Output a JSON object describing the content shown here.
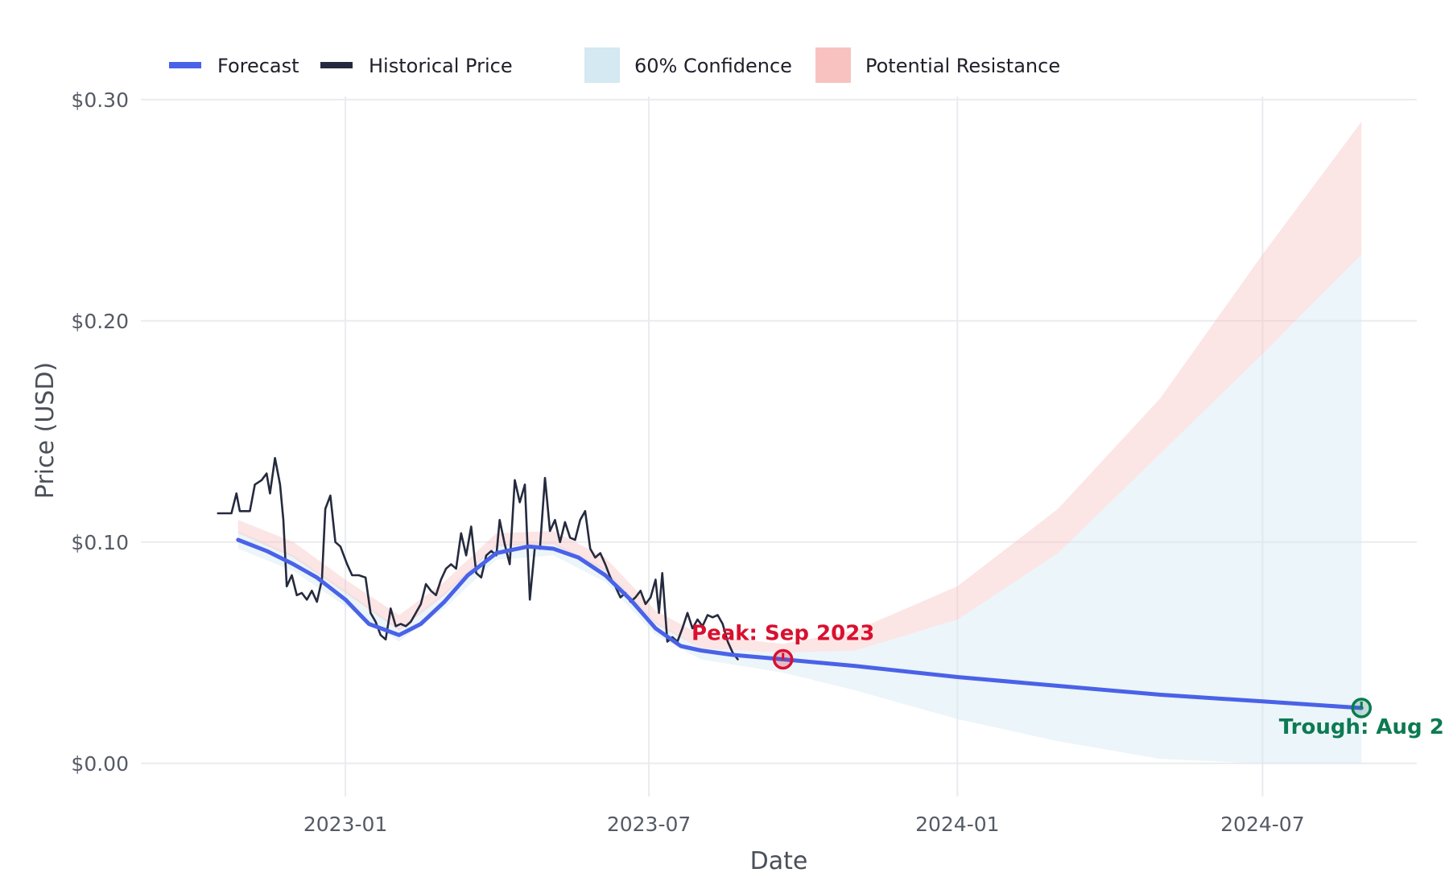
{
  "chart_data": {
    "type": "line",
    "xlabel": "Date",
    "ylabel": "Price (USD)",
    "x_range": [
      "2022-09-01",
      "2024-10-01"
    ],
    "ylim": [
      -0.015,
      0.305
    ],
    "y_ticks": [
      0.0,
      0.1,
      0.2,
      0.3
    ],
    "y_tick_labels": [
      "$0.00",
      "$0.10",
      "$0.20",
      "$0.30"
    ],
    "x_ticks": [
      "2023-01-01",
      "2023-07-01",
      "2024-01-01",
      "2024-07-01"
    ],
    "x_tick_labels": [
      "2023-01",
      "2023-07",
      "2024-01",
      "2024-07"
    ],
    "grid": true,
    "legend_position": "top-left",
    "legend": [
      {
        "label": "Forecast",
        "kind": "line",
        "color": "#4a62e8"
      },
      {
        "label": "Historical Price",
        "kind": "line",
        "color": "#252a3e"
      },
      {
        "label": "60% Confidence",
        "kind": "area",
        "color": "#d4e9f1"
      },
      {
        "label": "Potential Resistance",
        "kind": "area",
        "color": "#f8c2c0"
      }
    ],
    "series": [
      {
        "name": "Historical Price",
        "color": "#252a3e",
        "points": [
          [
            "2022-10-17",
            0.113
          ],
          [
            "2022-10-25",
            0.113
          ],
          [
            "2022-10-28",
            0.122
          ],
          [
            "2022-10-30",
            0.114
          ],
          [
            "2022-11-05",
            0.114
          ],
          [
            "2022-11-08",
            0.126
          ],
          [
            "2022-11-12",
            0.128
          ],
          [
            "2022-11-15",
            0.131
          ],
          [
            "2022-11-17",
            0.122
          ],
          [
            "2022-11-20",
            0.138
          ],
          [
            "2022-11-23",
            0.126
          ],
          [
            "2022-11-25",
            0.11
          ],
          [
            "2022-11-27",
            0.08
          ],
          [
            "2022-11-30",
            0.085
          ],
          [
            "2022-12-03",
            0.076
          ],
          [
            "2022-12-06",
            0.077
          ],
          [
            "2022-12-09",
            0.074
          ],
          [
            "2022-12-12",
            0.078
          ],
          [
            "2022-12-15",
            0.073
          ],
          [
            "2022-12-18",
            0.083
          ],
          [
            "2022-12-20",
            0.115
          ],
          [
            "2022-12-23",
            0.121
          ],
          [
            "2022-12-26",
            0.1
          ],
          [
            "2022-12-29",
            0.098
          ],
          [
            "2023-01-02",
            0.09
          ],
          [
            "2023-01-05",
            0.085
          ],
          [
            "2023-01-09",
            0.085
          ],
          [
            "2023-01-13",
            0.084
          ],
          [
            "2023-01-16",
            0.068
          ],
          [
            "2023-01-19",
            0.064
          ],
          [
            "2023-01-22",
            0.058
          ],
          [
            "2023-01-25",
            0.056
          ],
          [
            "2023-01-28",
            0.07
          ],
          [
            "2023-01-31",
            0.062
          ],
          [
            "2023-02-03",
            0.063
          ],
          [
            "2023-02-06",
            0.062
          ],
          [
            "2023-02-09",
            0.064
          ],
          [
            "2023-02-12",
            0.068
          ],
          [
            "2023-02-15",
            0.072
          ],
          [
            "2023-02-18",
            0.081
          ],
          [
            "2023-02-21",
            0.078
          ],
          [
            "2023-02-24",
            0.076
          ],
          [
            "2023-02-27",
            0.083
          ],
          [
            "2023-03-02",
            0.088
          ],
          [
            "2023-03-05",
            0.09
          ],
          [
            "2023-03-08",
            0.088
          ],
          [
            "2023-03-11",
            0.104
          ],
          [
            "2023-03-14",
            0.094
          ],
          [
            "2023-03-17",
            0.107
          ],
          [
            "2023-03-20",
            0.086
          ],
          [
            "2023-03-23",
            0.084
          ],
          [
            "2023-03-26",
            0.094
          ],
          [
            "2023-03-29",
            0.096
          ],
          [
            "2023-04-01",
            0.094
          ],
          [
            "2023-04-03",
            0.11
          ],
          [
            "2023-04-06",
            0.099
          ],
          [
            "2023-04-09",
            0.09
          ],
          [
            "2023-04-12",
            0.128
          ],
          [
            "2023-04-15",
            0.118
          ],
          [
            "2023-04-18",
            0.126
          ],
          [
            "2023-04-21",
            0.074
          ],
          [
            "2023-04-24",
            0.098
          ],
          [
            "2023-04-27",
            0.097
          ],
          [
            "2023-04-30",
            0.129
          ],
          [
            "2023-05-03",
            0.105
          ],
          [
            "2023-05-06",
            0.11
          ],
          [
            "2023-05-09",
            0.1
          ],
          [
            "2023-05-12",
            0.109
          ],
          [
            "2023-05-15",
            0.102
          ],
          [
            "2023-05-18",
            0.101
          ],
          [
            "2023-05-21",
            0.11
          ],
          [
            "2023-05-24",
            0.114
          ],
          [
            "2023-05-27",
            0.097
          ],
          [
            "2023-05-30",
            0.093
          ],
          [
            "2023-06-02",
            0.095
          ],
          [
            "2023-06-05",
            0.09
          ],
          [
            "2023-06-08",
            0.084
          ],
          [
            "2023-06-11",
            0.08
          ],
          [
            "2023-06-14",
            0.075
          ],
          [
            "2023-06-17",
            0.077
          ],
          [
            "2023-06-20",
            0.073
          ],
          [
            "2023-06-23",
            0.075
          ],
          [
            "2023-06-26",
            0.078
          ],
          [
            "2023-06-29",
            0.072
          ],
          [
            "2023-07-02",
            0.075
          ],
          [
            "2023-07-05",
            0.083
          ],
          [
            "2023-07-07",
            0.068
          ],
          [
            "2023-07-09",
            0.086
          ],
          [
            "2023-07-12",
            0.055
          ],
          [
            "2023-07-15",
            0.057
          ],
          [
            "2023-07-18",
            0.055
          ],
          [
            "2023-07-21",
            0.061
          ],
          [
            "2023-07-24",
            0.068
          ],
          [
            "2023-07-27",
            0.061
          ],
          [
            "2023-07-30",
            0.065
          ],
          [
            "2023-08-02",
            0.062
          ],
          [
            "2023-08-05",
            0.067
          ],
          [
            "2023-08-08",
            0.066
          ],
          [
            "2023-08-11",
            0.067
          ],
          [
            "2023-08-14",
            0.063
          ],
          [
            "2023-08-17",
            0.055
          ],
          [
            "2023-08-20",
            0.05
          ],
          [
            "2023-08-23",
            0.047
          ]
        ]
      },
      {
        "name": "Forecast",
        "color": "#4a62e8",
        "points": [
          [
            "2022-10-29",
            0.101
          ],
          [
            "2022-11-15",
            0.096
          ],
          [
            "2022-12-01",
            0.09
          ],
          [
            "2022-12-15",
            0.084
          ],
          [
            "2023-01-01",
            0.074
          ],
          [
            "2023-01-15",
            0.063
          ],
          [
            "2023-02-02",
            0.058
          ],
          [
            "2023-02-15",
            0.063
          ],
          [
            "2023-03-01",
            0.073
          ],
          [
            "2023-03-15",
            0.085
          ],
          [
            "2023-04-01",
            0.095
          ],
          [
            "2023-04-20",
            0.098
          ],
          [
            "2023-05-05",
            0.097
          ],
          [
            "2023-05-20",
            0.093
          ],
          [
            "2023-06-05",
            0.085
          ],
          [
            "2023-06-20",
            0.074
          ],
          [
            "2023-07-05",
            0.061
          ],
          [
            "2023-07-20",
            0.053
          ],
          [
            "2023-08-01",
            0.051
          ],
          [
            "2023-08-20",
            0.049
          ],
          [
            "2023-09-19",
            0.047
          ],
          [
            "2023-11-01",
            0.044
          ],
          [
            "2024-01-01",
            0.039
          ],
          [
            "2024-03-01",
            0.035
          ],
          [
            "2024-05-01",
            0.031
          ],
          [
            "2024-07-01",
            0.028
          ],
          [
            "2024-08-29",
            0.025
          ]
        ]
      }
    ],
    "bands": [
      {
        "name": "60% Confidence",
        "color": "#d4e9f1",
        "points": [
          [
            "2022-10-29",
            0.097,
            0.105
          ],
          [
            "2022-12-01",
            0.087,
            0.094
          ],
          [
            "2023-01-01",
            0.071,
            0.078
          ],
          [
            "2023-02-02",
            0.055,
            0.061
          ],
          [
            "2023-03-01",
            0.07,
            0.077
          ],
          [
            "2023-04-01",
            0.092,
            0.099
          ],
          [
            "2023-05-05",
            0.094,
            0.1
          ],
          [
            "2023-06-05",
            0.082,
            0.088
          ],
          [
            "2023-07-05",
            0.058,
            0.064
          ],
          [
            "2023-08-01",
            0.047,
            0.052
          ],
          [
            "2023-09-19",
            0.041,
            0.05
          ],
          [
            "2023-11-01",
            0.033,
            0.051
          ],
          [
            "2024-01-01",
            0.02,
            0.065
          ],
          [
            "2024-03-01",
            0.01,
            0.095
          ],
          [
            "2024-05-01",
            0.002,
            0.14
          ],
          [
            "2024-07-01",
            0.0,
            0.185
          ],
          [
            "2024-08-29",
            0.0,
            0.23
          ]
        ]
      },
      {
        "name": "Potential Resistance",
        "color": "#f8c2c0",
        "points": [
          [
            "2022-10-29",
            0.104,
            0.11
          ],
          [
            "2022-12-01",
            0.093,
            0.1
          ],
          [
            "2023-01-01",
            0.077,
            0.083
          ],
          [
            "2023-02-02",
            0.06,
            0.067
          ],
          [
            "2023-03-01",
            0.076,
            0.082
          ],
          [
            "2023-04-01",
            0.098,
            0.104
          ],
          [
            "2023-05-05",
            0.099,
            0.105
          ],
          [
            "2023-06-05",
            0.087,
            0.093
          ],
          [
            "2023-07-05",
            0.063,
            0.069
          ],
          [
            "2023-08-01",
            0.052,
            0.058
          ],
          [
            "2023-09-19",
            0.05,
            0.054
          ],
          [
            "2023-11-01",
            0.051,
            0.06
          ],
          [
            "2024-01-01",
            0.065,
            0.08
          ],
          [
            "2024-03-01",
            0.095,
            0.115
          ],
          [
            "2024-05-01",
            0.14,
            0.165
          ],
          [
            "2024-07-01",
            0.185,
            0.23
          ],
          [
            "2024-08-29",
            0.23,
            0.29
          ]
        ]
      }
    ],
    "annotations": [
      {
        "text": "Peak: Sep 2023",
        "x": "2023-09-19",
        "y": 0.047,
        "color": "#d9102f",
        "label_side": "above"
      },
      {
        "text": "Trough: Aug 2",
        "x": "2024-08-29",
        "y": 0.025,
        "color": "#0c7a52",
        "label_side": "below"
      }
    ]
  }
}
